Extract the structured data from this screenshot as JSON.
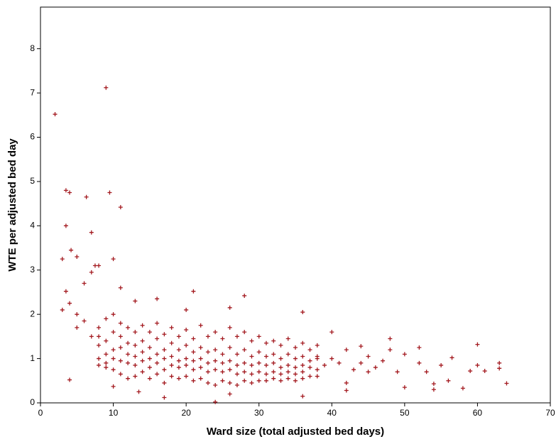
{
  "chart_data": {
    "type": "scatter",
    "xlabel": "Ward size (total adjusted bed days)",
    "ylabel": "WTE per adjusted bed day",
    "color": "#a3191f",
    "xlim": [
      0,
      70
    ],
    "xticks": [
      0,
      10,
      20,
      30,
      40,
      50,
      60,
      70
    ],
    "ylim": [
      0,
      8.94
    ],
    "yticks": [
      0,
      1,
      2,
      3,
      4,
      5,
      6,
      7,
      8
    ],
    "x": [
      2,
      9,
      3.5,
      4,
      6.3,
      9.5,
      11,
      3.5,
      7,
      3,
      4.2,
      5,
      10,
      7.5,
      8,
      7,
      6,
      4,
      10,
      13.5,
      17,
      24,
      26,
      36,
      50,
      54,
      54,
      58,
      56,
      64,
      60,
      60,
      61,
      63,
      63,
      59,
      55,
      56.5,
      52,
      52,
      53,
      50,
      48,
      48,
      46,
      45,
      45,
      44,
      44,
      42,
      42,
      42,
      40,
      40,
      36,
      28,
      26,
      21,
      16,
      13,
      11,
      3.5,
      4,
      5,
      3,
      20,
      6,
      5,
      7,
      38,
      39,
      41,
      43,
      47,
      49,
      8,
      8,
      8,
      8,
      8,
      9,
      9,
      9,
      9,
      9,
      10,
      10,
      10,
      10,
      10,
      11,
      11,
      11,
      11,
      11,
      12,
      12,
      12,
      12,
      12,
      13,
      13,
      13,
      13,
      13,
      14,
      14,
      14,
      14,
      14,
      15,
      15,
      15,
      15,
      15,
      16,
      16,
      16,
      16,
      16,
      17,
      17,
      17,
      17,
      17,
      18,
      18,
      18,
      18,
      18,
      19,
      19,
      19,
      19,
      19,
      20,
      20,
      20,
      20,
      20,
      21,
      21,
      21,
      21,
      21,
      22,
      22,
      22,
      22,
      22,
      23,
      23,
      23,
      23,
      23,
      24,
      24,
      24,
      24,
      24,
      25,
      25,
      25,
      25,
      25,
      26,
      26,
      26,
      26,
      26,
      27,
      27,
      27,
      27,
      27,
      28,
      28,
      28,
      28,
      28,
      29,
      29,
      29,
      29,
      29,
      30,
      30,
      30,
      30,
      30,
      31,
      31,
      31,
      31,
      31,
      32,
      32,
      32,
      32,
      32,
      33,
      33,
      33,
      33,
      33,
      34,
      34,
      34,
      34,
      34,
      35,
      35,
      35,
      35,
      35,
      36,
      36,
      36,
      36,
      36,
      37,
      37,
      37,
      37,
      38,
      38,
      38,
      38
    ],
    "y": [
      6.52,
      7.12,
      4.8,
      4.75,
      4.65,
      4.75,
      4.42,
      4,
      3.85,
      3.25,
      3.45,
      3.3,
      3.25,
      3.1,
      3.1,
      2.95,
      2.7,
      0.52,
      0.37,
      0.25,
      0.12,
      0.02,
      0.2,
      0.15,
      0.35,
      0.3,
      0.43,
      0.33,
      0.5,
      0.44,
      1.32,
      0.85,
      0.72,
      0.9,
      0.78,
      0.72,
      0.85,
      1.02,
      1.25,
      0.9,
      0.7,
      1.1,
      1.45,
      1.2,
      0.8,
      1.05,
      0.7,
      1.28,
      0.9,
      1.2,
      0.45,
      0.28,
      1.6,
      1.0,
      2.05,
      2.42,
      2.15,
      2.52,
      2.35,
      2.3,
      2.6,
      2.52,
      2.25,
      2.0,
      2.1,
      2.1,
      1.85,
      1.7,
      1.5,
      1.05,
      0.85,
      0.9,
      0.75,
      0.95,
      0.7,
      1.7,
      1.3,
      1.0,
      0.85,
      1.5,
      1.9,
      1.4,
      1.1,
      0.9,
      0.8,
      2.0,
      1.6,
      1.2,
      1.0,
      0.75,
      1.8,
      1.5,
      1.25,
      0.95,
      0.65,
      1.7,
      1.35,
      1.1,
      0.9,
      0.55,
      1.6,
      1.3,
      1.05,
      0.85,
      0.6,
      1.75,
      1.4,
      1.15,
      0.95,
      0.7,
      1.6,
      1.25,
      1.0,
      0.8,
      0.55,
      1.8,
      1.45,
      1.1,
      0.9,
      0.65,
      1.55,
      1.2,
      1.0,
      0.75,
      0.45,
      1.7,
      1.35,
      1.05,
      0.85,
      0.6,
      1.5,
      1.2,
      0.95,
      0.8,
      0.55,
      1.65,
      1.3,
      1.0,
      0.85,
      0.6,
      1.45,
      1.15,
      0.95,
      0.75,
      0.5,
      1.75,
      1.25,
      1.0,
      0.8,
      0.55,
      1.5,
      1.15,
      0.9,
      0.7,
      0.45,
      1.6,
      1.2,
      0.95,
      0.75,
      0.4,
      1.45,
      1.1,
      0.9,
      0.7,
      0.5,
      1.7,
      1.25,
      0.95,
      0.75,
      0.45,
      1.5,
      1.1,
      0.85,
      0.65,
      0.4,
      1.6,
      1.2,
      0.9,
      0.7,
      0.5,
      1.4,
      1.05,
      0.85,
      0.65,
      0.45,
      1.5,
      1.15,
      0.9,
      0.7,
      0.5,
      1.35,
      1.05,
      0.85,
      0.65,
      0.5,
      1.4,
      1.1,
      0.9,
      0.7,
      0.55,
      1.3,
      1.0,
      0.8,
      0.65,
      0.5,
      1.45,
      1.1,
      0.85,
      0.7,
      0.55,
      1.25,
      1.0,
      0.8,
      0.65,
      0.5,
      1.35,
      1.05,
      0.85,
      0.7,
      0.55,
      1.2,
      0.95,
      0.8,
      0.6,
      1.3,
      1.0,
      0.75,
      0.6
    ]
  }
}
